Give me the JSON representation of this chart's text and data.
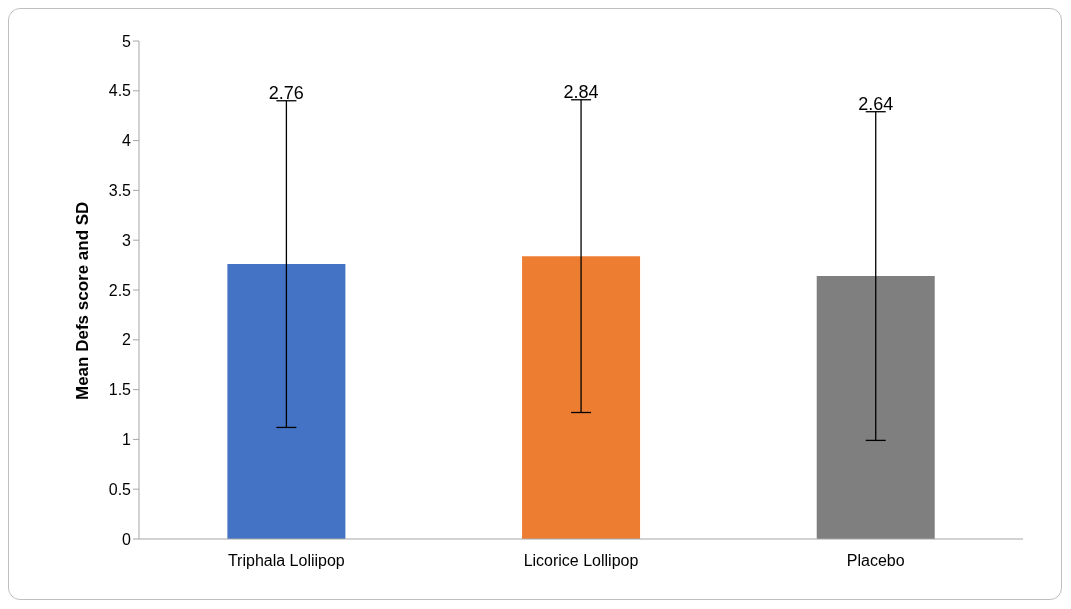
{
  "chart_data": {
    "type": "bar",
    "ylabel": "Mean Defs score and SD",
    "categories": [
      "Triphala Loliipop",
      "Licorice Lollipop",
      "Placebo"
    ],
    "values": [
      2.76,
      2.84,
      2.64
    ],
    "colors": [
      "#4472c4",
      "#ed7d31",
      "#7f7f7f"
    ],
    "errors": [
      1.64,
      1.57,
      1.65
    ],
    "annotations": [
      {
        "text": "2.76",
        "x": "Triphala Loliipop",
        "y": 4.4
      },
      {
        "text": "2.84",
        "x": "Licorice Lollipop",
        "y": 4.41
      },
      {
        "text": "2.64",
        "x": "Placebo",
        "y": 4.29
      }
    ],
    "ylim": [
      0,
      5
    ],
    "yticks": [
      0,
      0.5,
      1,
      1.5,
      2,
      2.5,
      3,
      3.5,
      4,
      4.5,
      5
    ],
    "grid": false,
    "legend": false
  }
}
